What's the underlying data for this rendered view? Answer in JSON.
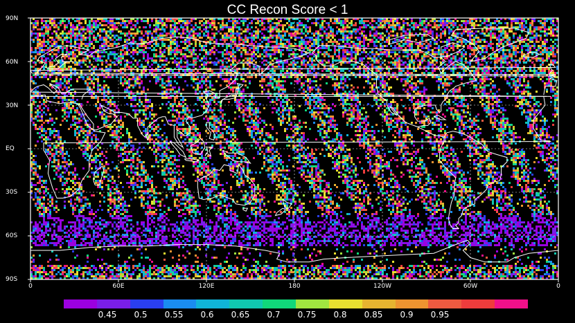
{
  "title": "CC Recon Score < 1",
  "map": {
    "region": "global",
    "projection": "cylindrical-equidistant",
    "lon_range": [
      0,
      360
    ],
    "lat_range": [
      -90,
      90
    ],
    "grid_lines": true,
    "coastline_color": "#ffffff",
    "background": "#000000",
    "lat_labels": [
      "90N",
      "60N",
      "30N",
      "EQ",
      "30S",
      "60S",
      "90S"
    ],
    "lat_values": [
      90,
      60,
      30,
      0,
      -30,
      -60,
      -90
    ],
    "lon_labels": [
      "0",
      "60E",
      "120E",
      "180",
      "120W",
      "60W",
      "0"
    ],
    "lon_values": [
      0,
      60,
      120,
      180,
      240,
      300,
      360
    ]
  },
  "colorbar": {
    "colors": [
      "#9b00e0",
      "#7a1ee8",
      "#2a3ff0",
      "#1a8cf0",
      "#10b4d8",
      "#10c8b0",
      "#10d87a",
      "#a0e640",
      "#e8e030",
      "#e6b430",
      "#ee9430",
      "#ee5a40",
      "#ee3c3c",
      "#f0108a"
    ],
    "labels": [
      "0.45",
      "0.5",
      "0.55",
      "0.6",
      "0.65",
      "0.7",
      "0.75",
      "0.8",
      "0.85",
      "0.9",
      "0.95"
    ]
  }
}
